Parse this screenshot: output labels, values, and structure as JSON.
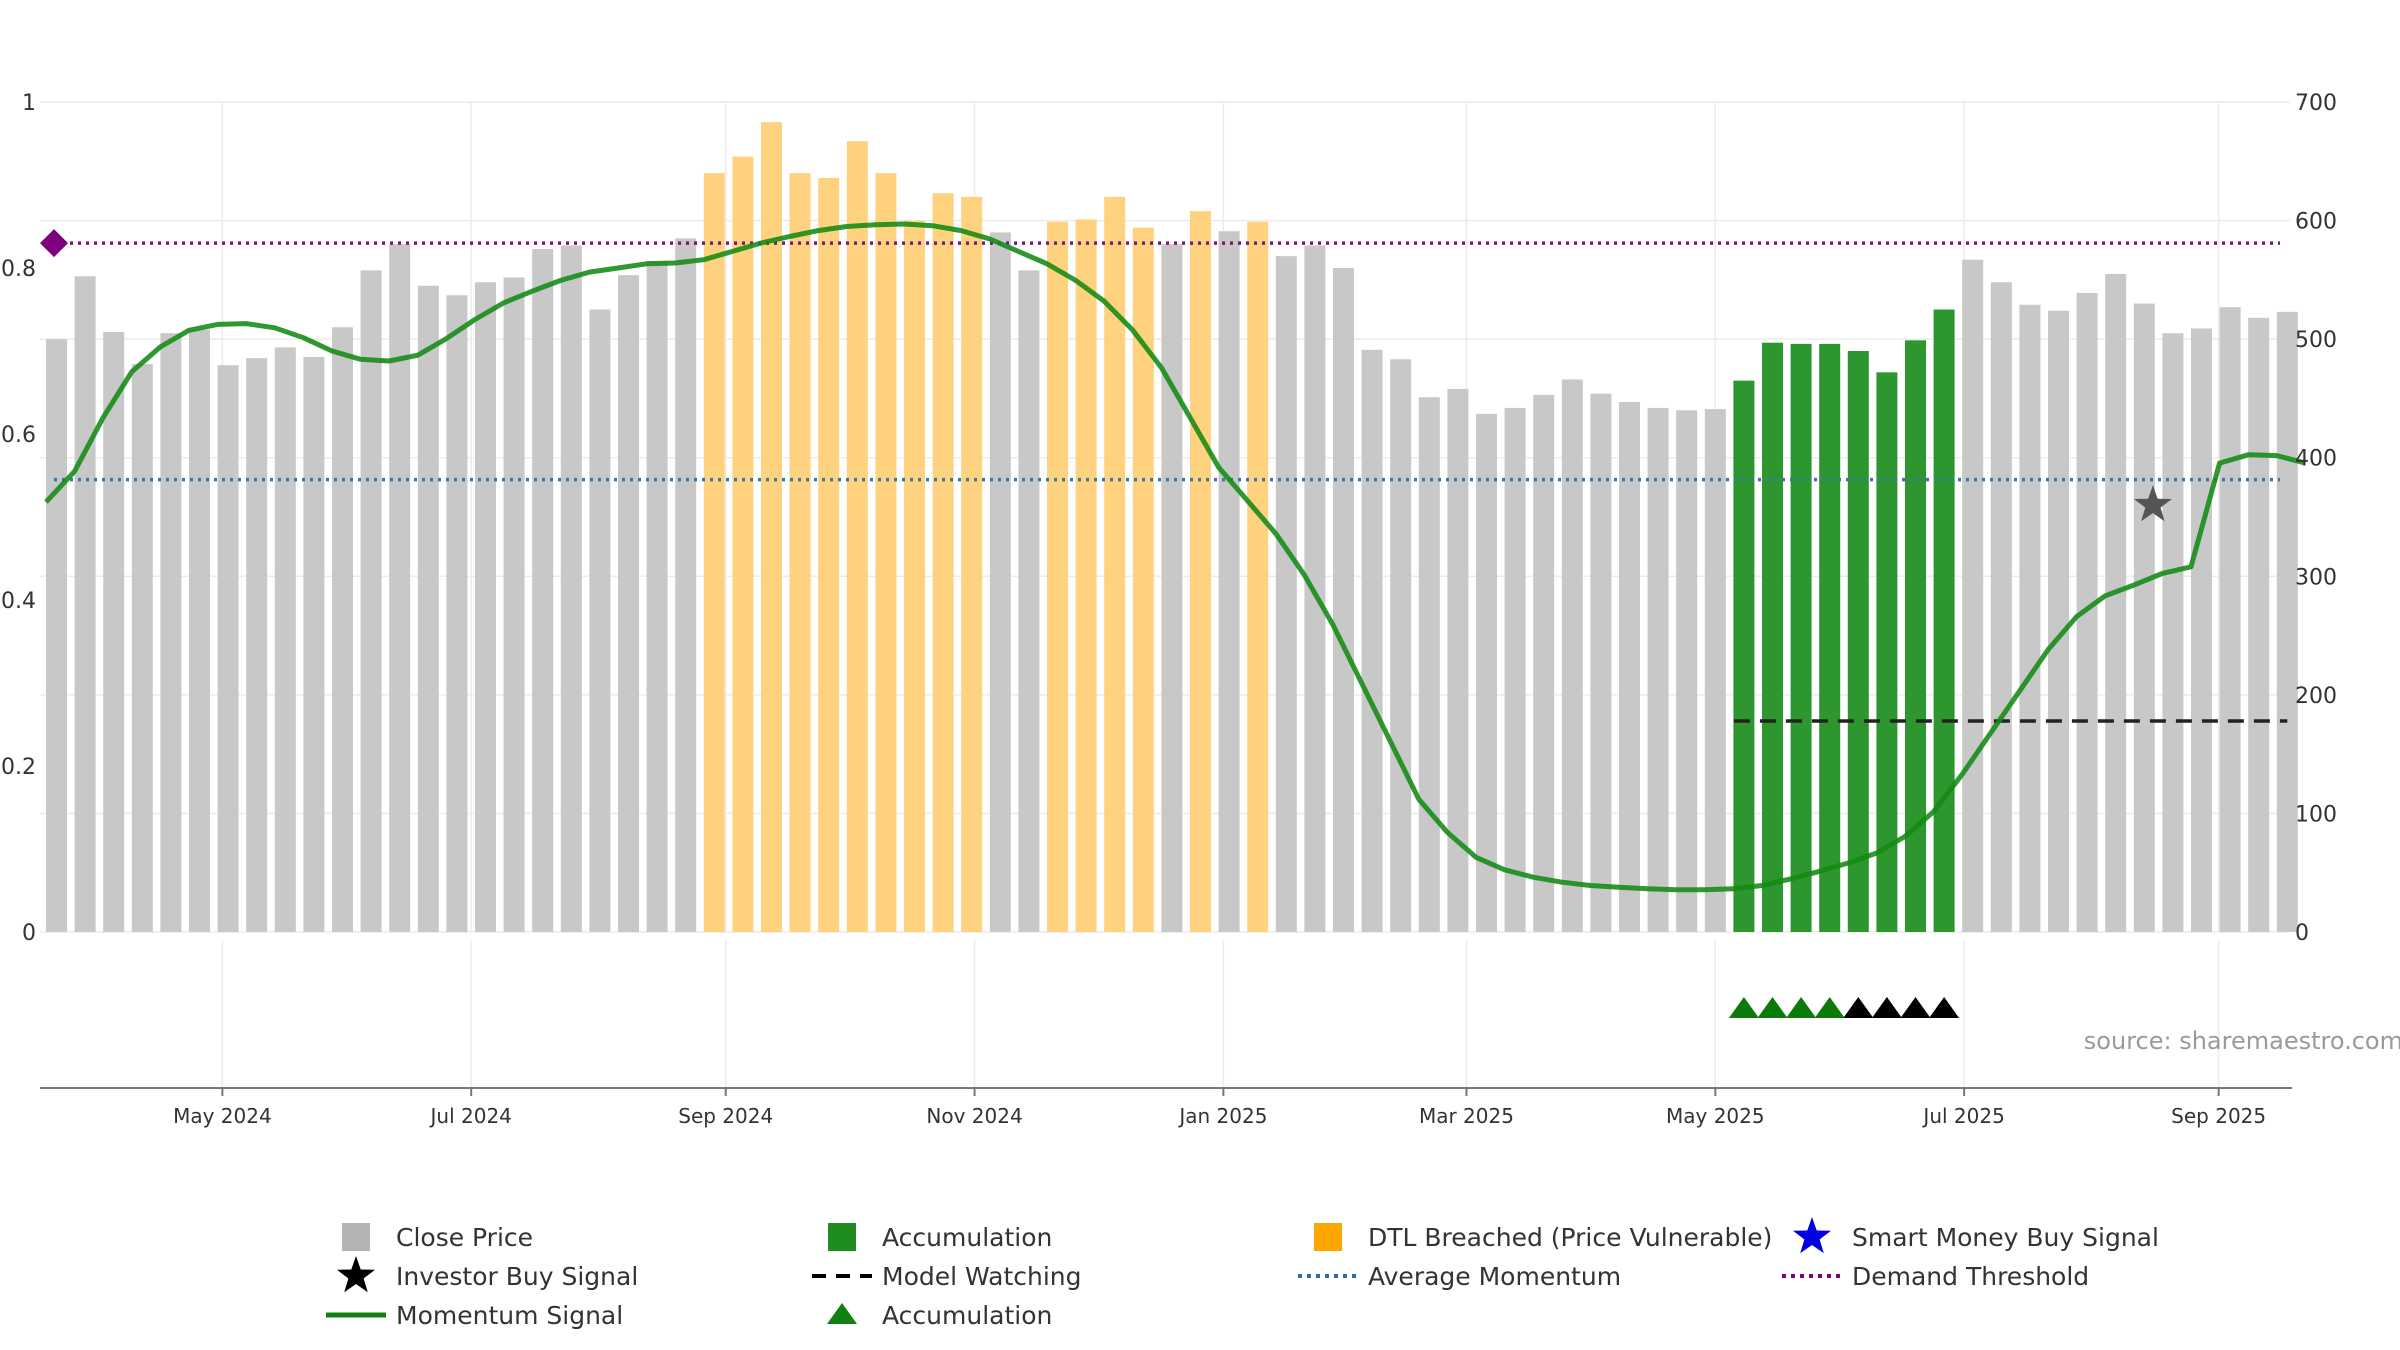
{
  "chart_data": {
    "type": "bar",
    "title": "",
    "source_text": "source: sharemaestro.com",
    "colors": {
      "close": "#c8c8c8",
      "accumulation": "#2e962e",
      "dtl": "#ffd27f",
      "momentum": "#138a13",
      "avg_momentum": "#3a78a8",
      "demand": "#7b1a7b",
      "watching": "#222222",
      "acc_marker": "#0a7a0a",
      "watch_marker": "#000000",
      "star": "#555555",
      "diamond": "#800080"
    },
    "left_axis": {
      "ylim": [
        0,
        1
      ],
      "ticks": [
        "0",
        "0.2",
        "0.4",
        "0.6",
        "0.8",
        "1"
      ],
      "tick_values": [
        0,
        0.2,
        0.4,
        0.6,
        0.8,
        1
      ]
    },
    "right_axis": {
      "ylim": [
        0,
        700
      ],
      "ticks": [
        "0",
        "100",
        "200",
        "300",
        "400",
        "500",
        "600",
        "700"
      ],
      "tick_values": [
        0,
        100,
        200,
        300,
        400,
        500,
        600,
        700
      ]
    },
    "x_axis": {
      "ticks": [
        {
          "label": "May 2024",
          "pos": 5.8
        },
        {
          "label": "Jul 2024",
          "pos": 14.5
        },
        {
          "label": "Sep 2024",
          "pos": 23.4
        },
        {
          "label": "Nov 2024",
          "pos": 32.1
        },
        {
          "label": "Jan 2025",
          "pos": 40.8
        },
        {
          "label": "Mar 2025",
          "pos": 49.3
        },
        {
          "label": "May 2025",
          "pos": 58.0
        },
        {
          "label": "Jul 2025",
          "pos": 66.7
        },
        {
          "label": "Sep 2025",
          "pos": 75.6
        }
      ]
    },
    "series": [
      {
        "name": "Close Price",
        "axis": "right",
        "values": [
          500,
          553,
          506,
          479,
          505,
          508,
          478,
          484,
          493,
          485,
          510,
          558,
          580,
          545,
          537,
          548,
          552,
          576,
          579,
          525,
          554,
          566,
          585,
          640,
          654,
          683,
          640,
          636,
          667,
          640,
          600,
          623,
          620,
          590,
          558,
          599,
          601,
          620,
          594,
          580,
          608,
          591,
          599,
          570,
          579,
          560,
          491,
          483,
          451,
          458,
          437,
          442,
          453,
          466,
          454,
          447,
          442,
          440,
          441,
          465,
          497,
          496,
          496,
          490,
          472,
          499,
          525,
          567,
          548,
          529,
          524,
          539,
          555,
          530,
          505,
          509,
          527,
          518,
          523
        ],
        "bar_types": [
          "close",
          "close",
          "close",
          "close",
          "close",
          "close",
          "close",
          "close",
          "close",
          "close",
          "close",
          "close",
          "close",
          "close",
          "close",
          "close",
          "close",
          "close",
          "close",
          "close",
          "close",
          "close",
          "close",
          "dtl",
          "dtl",
          "dtl",
          "dtl",
          "dtl",
          "dtl",
          "dtl",
          "dtl",
          "dtl",
          "dtl",
          "close",
          "close",
          "dtl",
          "dtl",
          "dtl",
          "dtl",
          "close",
          "dtl",
          "close",
          "dtl",
          "close",
          "close",
          "close",
          "close",
          "close",
          "close",
          "close",
          "close",
          "close",
          "close",
          "close",
          "close",
          "close",
          "close",
          "close",
          "close",
          "acc",
          "acc",
          "acc",
          "acc",
          "acc",
          "acc",
          "acc",
          "acc",
          "close",
          "close",
          "close",
          "close",
          "close",
          "close",
          "close",
          "close",
          "close",
          "close",
          "close",
          "close"
        ]
      },
      {
        "name": "Momentum Signal",
        "axis": "left",
        "values": [
          0.518,
          0.555,
          0.62,
          0.675,
          0.705,
          0.725,
          0.732,
          0.733,
          0.728,
          0.716,
          0.7,
          0.69,
          0.688,
          0.695,
          0.715,
          0.738,
          0.758,
          0.772,
          0.785,
          0.795,
          0.8,
          0.805,
          0.806,
          0.81,
          0.82,
          0.83,
          0.838,
          0.845,
          0.85,
          0.852,
          0.853,
          0.851,
          0.845,
          0.835,
          0.82,
          0.805,
          0.785,
          0.76,
          0.725,
          0.68,
          0.62,
          0.56,
          0.52,
          0.48,
          0.43,
          0.37,
          0.3,
          0.23,
          0.16,
          0.12,
          0.09,
          0.075,
          0.066,
          0.06,
          0.056,
          0.054,
          0.052,
          0.051,
          0.051,
          0.052,
          0.056,
          0.064,
          0.073,
          0.083,
          0.095,
          0.115,
          0.145,
          0.19,
          0.24,
          0.29,
          0.34,
          0.38,
          0.405,
          0.418,
          0.432,
          0.44,
          0.565,
          0.575,
          0.574,
          0.565
        ],
        "x_start": 0.5
      }
    ],
    "average_momentum": 0.545,
    "demand_threshold": 0.83,
    "demand_marker": {
      "x": 0.5,
      "y": 0.83
    },
    "model_watching": {
      "x_start": 59,
      "x_end": 78,
      "right_value": 178
    },
    "investor_buy_signal": {
      "x": 73.3,
      "right_value": 360
    },
    "accumulation_markers": {
      "green": [
        59,
        60,
        61,
        62
      ],
      "black": [
        63,
        64,
        65,
        66
      ]
    },
    "legend": [
      {
        "label": "Close Price",
        "kind": "square",
        "color": "#b4b4b4"
      },
      {
        "label": "Accumulation",
        "kind": "square",
        "color": "#1e8c1e"
      },
      {
        "label": "DTL Breached (Price Vulnerable)",
        "kind": "square",
        "color": "#ffa500"
      },
      {
        "label": "Smart Money Buy Signal",
        "kind": "star",
        "color": "#0000e0"
      },
      {
        "label": "Investor Buy Signal",
        "kind": "star",
        "color": "#000000"
      },
      {
        "label": "Model Watching",
        "kind": "dash",
        "color": "#000000"
      },
      {
        "label": "Average Momentum",
        "kind": "dot",
        "color": "#2d6da3"
      },
      {
        "label": "Demand Threshold",
        "kind": "dot",
        "color": "#800080"
      },
      {
        "label": "Momentum Signal",
        "kind": "line",
        "color": "#108010"
      },
      {
        "label": "Accumulation",
        "kind": "triangle",
        "color": "#108010"
      }
    ]
  }
}
